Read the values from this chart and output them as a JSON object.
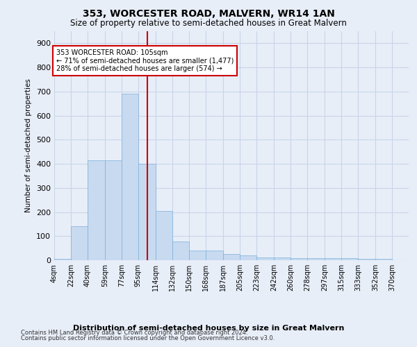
{
  "title": "353, WORCESTER ROAD, MALVERN, WR14 1AN",
  "subtitle": "Size of property relative to semi-detached houses in Great Malvern",
  "xlabel": "Distribution of semi-detached houses by size in Great Malvern",
  "ylabel": "Number of semi-detached properties",
  "footer1": "Contains HM Land Registry data © Crown copyright and database right 2024.",
  "footer2": "Contains public sector information licensed under the Open Government Licence v3.0.",
  "bin_labels": [
    "4sqm",
    "22sqm",
    "40sqm",
    "59sqm",
    "77sqm",
    "95sqm",
    "114sqm",
    "132sqm",
    "150sqm",
    "168sqm",
    "187sqm",
    "205sqm",
    "223sqm",
    "242sqm",
    "260sqm",
    "278sqm",
    "297sqm",
    "315sqm",
    "333sqm",
    "352sqm",
    "370sqm"
  ],
  "bar_values": [
    5,
    140,
    415,
    415,
    690,
    400,
    205,
    78,
    40,
    40,
    25,
    20,
    12,
    12,
    10,
    10,
    10,
    10,
    5,
    5,
    0
  ],
  "bar_color": "#c8daf0",
  "bar_edge_color": "#7ab0d8",
  "grid_color": "#c8d4e8",
  "background_color": "#e8eef8",
  "vline_x": 105,
  "vline_color": "#cc0000",
  "annotation_text": "353 WORCESTER ROAD: 105sqm\n← 71% of semi-detached houses are smaller (1,477)\n28% of semi-detached houses are larger (574) →",
  "annotation_box_color": "#ffffff",
  "annotation_box_edge": "#cc0000",
  "ylim": [
    0,
    950
  ],
  "yticks": [
    0,
    100,
    200,
    300,
    400,
    500,
    600,
    700,
    800,
    900
  ],
  "bin_edges": [
    4,
    22,
    40,
    59,
    77,
    95,
    114,
    132,
    150,
    168,
    187,
    205,
    223,
    242,
    260,
    278,
    297,
    315,
    333,
    352,
    370,
    388
  ]
}
